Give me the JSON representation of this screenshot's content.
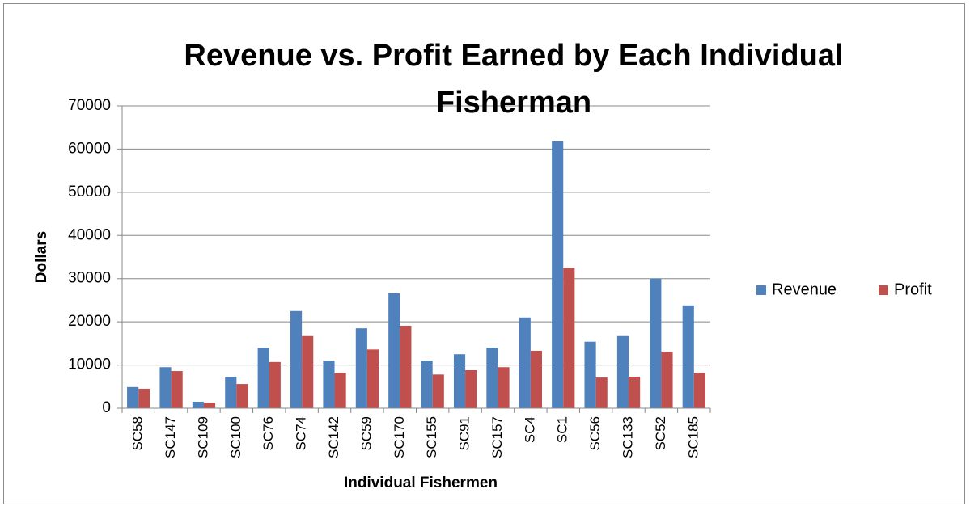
{
  "chart_data": {
    "type": "bar",
    "title": "Revenue vs. Profit Earned by Each Individual Fisherman",
    "x_label": "Individual Fishermen",
    "y_label": "Dollars",
    "categories": [
      "SC58",
      "SC147",
      "SC109",
      "SC100",
      "SC76",
      "SC74",
      "SC142",
      "SC59",
      "SC170",
      "SC155",
      "SC91",
      "SC157",
      "SC4",
      "SC1",
      "SC56",
      "SC133",
      "SC52",
      "SC185"
    ],
    "series": [
      {
        "name": "Revenue",
        "color": "#4f81bd",
        "values": [
          4900,
          9500,
          1500,
          7300,
          14000,
          22500,
          11000,
          18500,
          26600,
          11000,
          12500,
          14000,
          21000,
          61800,
          15400,
          16700,
          30000,
          23800
        ]
      },
      {
        "name": "Profit",
        "color": "#c0504d",
        "values": [
          4500,
          8600,
          1300,
          5600,
          10700,
          16700,
          8200,
          13600,
          19100,
          7800,
          8800,
          9500,
          13300,
          32500,
          7100,
          7300,
          13100,
          8200
        ]
      }
    ],
    "ylim": [
      0,
      70000
    ],
    "yticks": [
      0,
      10000,
      20000,
      30000,
      40000,
      50000,
      60000,
      70000
    ],
    "grid": true,
    "legend": "right"
  }
}
